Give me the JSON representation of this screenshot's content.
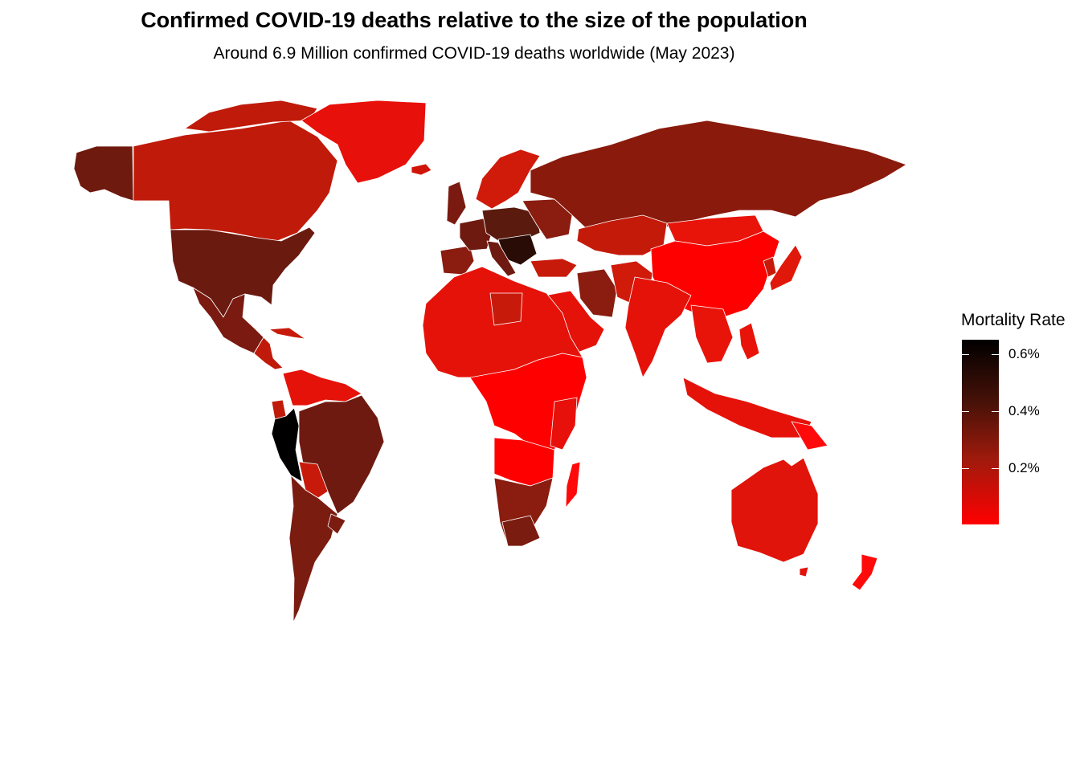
{
  "title": "Confirmed COVID-19 deaths relative to the size of the population",
  "subtitle": "Around 6.9 Million confirmed COVID-19 deaths worldwide (May 2023)",
  "legend": {
    "title": "Mortality Rate",
    "ticks": [
      {
        "value": 0.6,
        "label": "0.6%"
      },
      {
        "value": 0.4,
        "label": "0.4%"
      },
      {
        "value": 0.2,
        "label": "0.2%"
      }
    ],
    "range": [
      0.0,
      0.65
    ],
    "colors": {
      "low": "#ff0000",
      "high": "#000000"
    }
  }
}
